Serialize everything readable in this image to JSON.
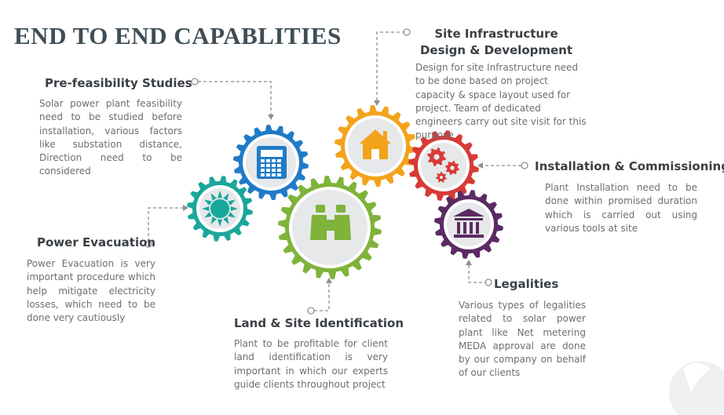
{
  "title": "END TO END CAPABLITIES",
  "colors": {
    "calculator": "#1f7bc8",
    "sun": "#1aa79b",
    "binoculars": "#7fb33a",
    "house": "#f3a31a",
    "gears": "#d83a36",
    "bank": "#5b2a63"
  },
  "sections": {
    "prefeasibility": {
      "heading": "Pre-feasibility Studies",
      "body": "Solar power plant feasibility need to be studied before installation, various factors like substation distance, Direction need to be considered",
      "icon": "calculator-icon"
    },
    "power_evacuation": {
      "heading": "Power Evacuation",
      "body": "Power Evacuation is very important procedure which help mitigate electricity losses, which need to be done very cautiously",
      "icon": "sun-icon"
    },
    "land_site": {
      "heading": "Land & Site Identification",
      "body": "Plant to be profitable for client land identification is very important in which our experts guide clients throughout project",
      "icon": "binoculars-icon"
    },
    "site_infra": {
      "heading": "Site Infrastructure Design & Development",
      "body": "Design for site Infrastructure need to be done based on project capacity & space layout used for project. Team of dedicated engineers carry out site visit for this purpose",
      "icon": "house-icon"
    },
    "installation": {
      "heading": "Installation & Commissioning",
      "body": "Plant Installation need to be done within promised duration which is carried out using various tools at site",
      "icon": "gears-icon"
    },
    "legalities": {
      "heading": "Legalities",
      "body": "Various types of legalities related to solar power plant like Net metering MEDA approval are done by our company on behalf of our clients",
      "icon": "bank-icon"
    }
  }
}
